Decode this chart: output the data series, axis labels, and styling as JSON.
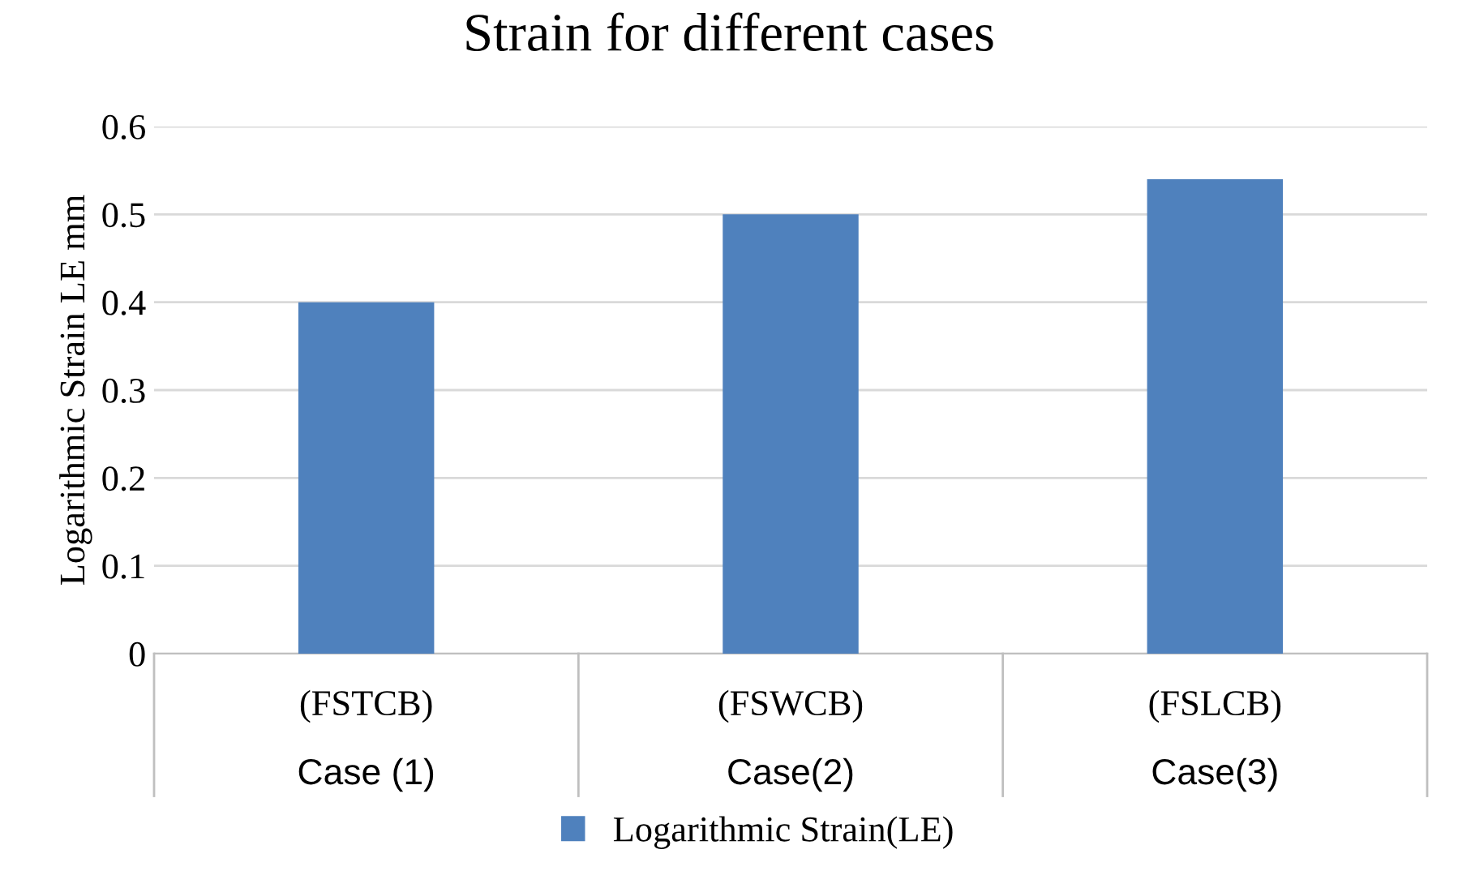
{
  "chart_data": {
    "type": "bar",
    "title": "Strain for different cases",
    "ylabel": "Logarithmic Strain LE mm",
    "categories": [
      "(FSTCB)\nCase (1)",
      "(FSWCB)\nCase(2)",
      "(FSLCB)\nCase(3)"
    ],
    "series": [
      {
        "name": "Logarithmic Strain(LE)",
        "color": "#4f81bd",
        "values": [
          0.4,
          0.5,
          0.54
        ]
      }
    ],
    "ylim": [
      0,
      0.6
    ],
    "yticks": [
      0,
      0.1,
      0.2,
      0.3,
      0.4,
      0.5,
      0.6
    ],
    "grid": "y",
    "legend": "bottom"
  }
}
